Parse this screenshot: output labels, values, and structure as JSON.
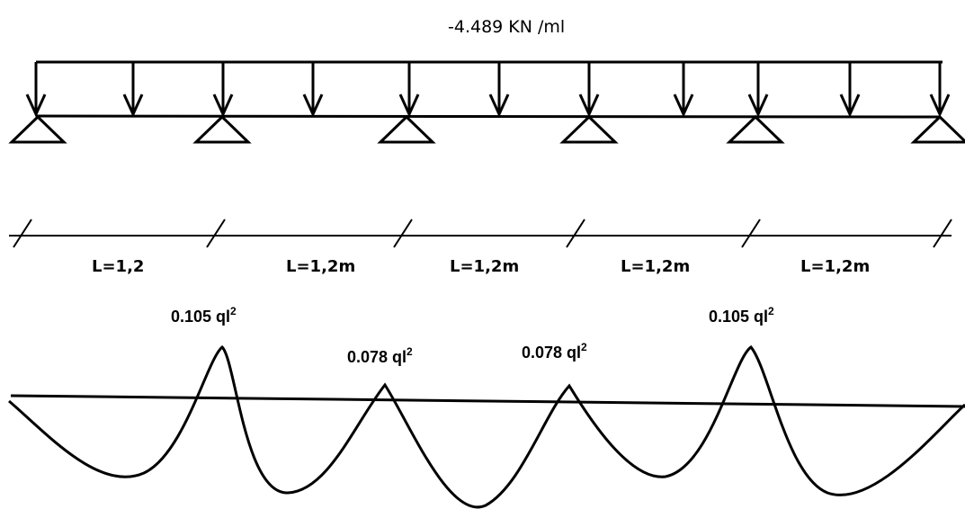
{
  "load": {
    "label": "-4.489 KN /ml"
  },
  "spans": [
    {
      "label": "L=1,2"
    },
    {
      "label": "L=1,2m"
    },
    {
      "label": "L=1,2m"
    },
    {
      "label": "L=1,2m"
    },
    {
      "label": "L=1,2m"
    }
  ],
  "moments": [
    {
      "text": "0.105 ql",
      "sup": "2"
    },
    {
      "text": "0.078 ql",
      "sup": "2"
    },
    {
      "text": "0.078 ql",
      "sup": "2"
    },
    {
      "text": "0.105 ql",
      "sup": "2"
    }
  ],
  "colors": {
    "line": "#000000",
    "background": "#ffffff"
  }
}
